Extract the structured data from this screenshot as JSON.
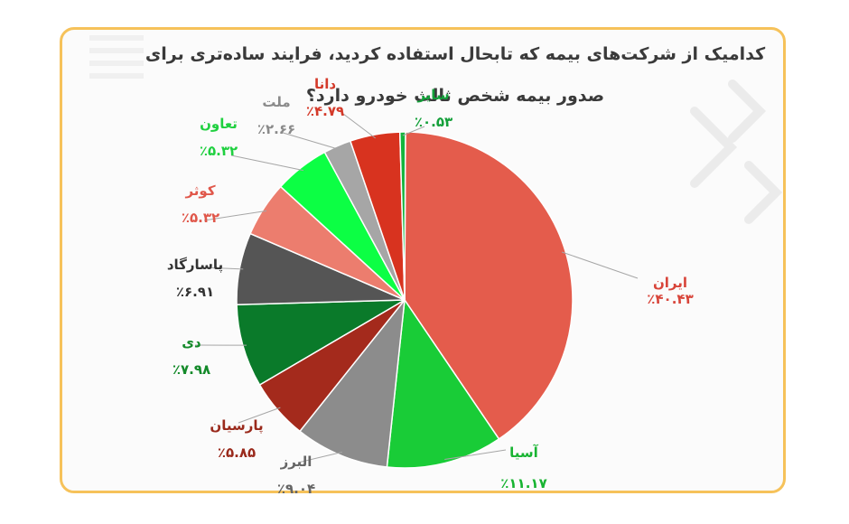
{
  "chart_data": {
    "type": "pie",
    "title": "کدامیک از شرکت‌های بیمه که تابحال استفاده کردید، فرایند ساده‌تری برای صدور بیمه شخص ثالث خودرو دارد؟",
    "slices": [
      {
        "label": "ایران",
        "value": 40.43,
        "value_label": "٪۴۰.۴۳",
        "color": "#e45c4c",
        "text_color": "#d8453a"
      },
      {
        "label": "آسیا",
        "value": 11.17,
        "value_label": "٪۱۱.۱۷",
        "color": "#19cc37",
        "text_color": "#18b432"
      },
      {
        "label": "البرز",
        "value": 9.04,
        "value_label": "٪۹.۰۴",
        "color": "#8c8c8c",
        "text_color": "#666666"
      },
      {
        "label": "پارسیان",
        "value": 5.85,
        "value_label": "٪۵.۸۵",
        "color": "#a42a1c",
        "text_color": "#9a2a1c"
      },
      {
        "label": "دی",
        "value": 7.98,
        "value_label": "٪۷.۹۸",
        "color": "#0a7a2a",
        "text_color": "#148a2a"
      },
      {
        "label": "پاسارگاد",
        "value": 6.91,
        "value_label": "٪۶.۹۱",
        "color": "#555555",
        "text_color": "#333333"
      },
      {
        "label": "کوثر",
        "value": 5.32,
        "value_label": "٪۵.۳۲",
        "color": "#ec7d6e",
        "text_color": "#e0574a"
      },
      {
        "label": "تعاون",
        "value": 5.32,
        "value_label": "٪۵.۳۲",
        "color": "#0cff44",
        "text_color": "#20d040"
      },
      {
        "label": "ملت",
        "value": 2.66,
        "value_label": "٪۲.۶۶",
        "color": "#a6a6a6",
        "text_color": "#8a8a8a"
      },
      {
        "label": "دانا",
        "value": 4.79,
        "value_label": "٪۴.۷۹",
        "color": "#d8331f",
        "text_color": "#d43a2a"
      },
      {
        "label": "سایر",
        "value": 0.53,
        "value_label": "٪۰.۵۳",
        "color": "#14b43c",
        "text_color": "#14a03a"
      }
    ]
  }
}
